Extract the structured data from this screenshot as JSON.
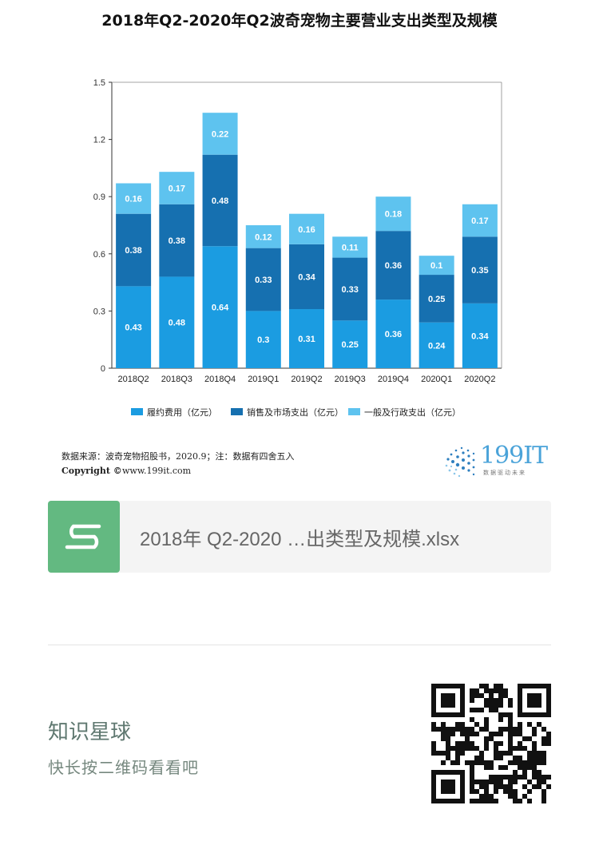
{
  "chart_data": {
    "type": "bar",
    "stacked": true,
    "title": "2018年Q2-2020年Q2波奇宠物主要营业支出类型及规模",
    "categories": [
      "2018Q2",
      "2018Q3",
      "2018Q4",
      "2019Q1",
      "2019Q2",
      "2019Q3",
      "2019Q4",
      "2020Q1",
      "2020Q2"
    ],
    "series": [
      {
        "name": "履约费用（亿元）",
        "color": "#1b9ce1",
        "values": [
          0.43,
          0.48,
          0.64,
          0.3,
          0.31,
          0.25,
          0.36,
          0.24,
          0.34
        ]
      },
      {
        "name": "销售及市场支出（亿元）",
        "color": "#1670b0",
        "values": [
          0.38,
          0.38,
          0.48,
          0.33,
          0.34,
          0.33,
          0.36,
          0.25,
          0.35
        ]
      },
      {
        "name": "一般及行政支出（亿元）",
        "color": "#5ec3ef",
        "values": [
          0.16,
          0.17,
          0.22,
          0.12,
          0.16,
          0.11,
          0.18,
          0.1,
          0.17
        ]
      }
    ],
    "yticks": [
      "0",
      "0.3",
      "0.6",
      "0.9",
      "1.2",
      "1.5"
    ],
    "ylim": [
      0,
      1.5
    ],
    "xlabel": "",
    "ylabel": "",
    "legend_position": "bottom"
  },
  "footer": {
    "source": "数据来源：波奇宠物招股书，2020.9；注：数据有四舍五入",
    "copyright": "Copyright ©",
    "website": "www.199it.com"
  },
  "logo": {
    "text_a": "199",
    "text_b": "IT",
    "subtitle": "数据驱动未来"
  },
  "file_card": {
    "name": "2018年 Q2-2020 …出类型及规模.xlsx",
    "icon": "spreadsheet-s-icon"
  },
  "planet": {
    "title": "知识星球",
    "subtitle": "快长按二维码看看吧",
    "qr_icon": "qr-code-icon"
  }
}
